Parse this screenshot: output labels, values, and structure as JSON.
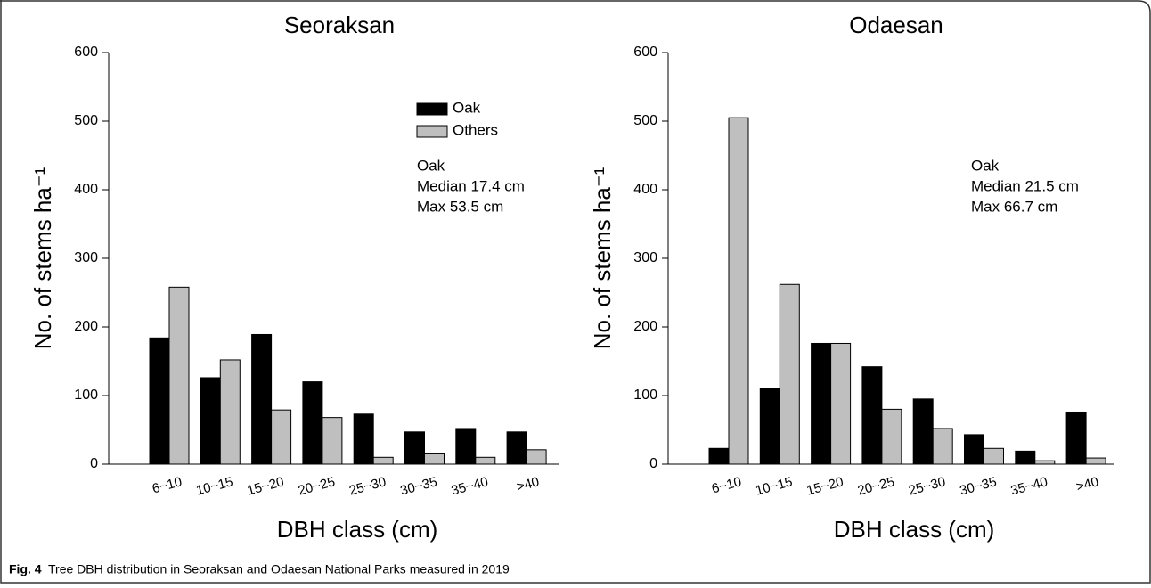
{
  "chart_data": [
    {
      "type": "bar",
      "title": "Seoraksan",
      "xlabel": "DBH class (cm)",
      "ylabel": "No. of stems ha⁻¹",
      "categories": [
        "6~10",
        "10~15",
        "15~20",
        "20~25",
        "25~30",
        "30~35",
        "35~40",
        ">40"
      ],
      "series": [
        {
          "name": "Oak",
          "color": "#000000",
          "values": [
            184,
            126,
            189,
            120,
            73,
            47,
            52,
            47
          ]
        },
        {
          "name": "Others",
          "color": "#bfbfbf",
          "values": [
            258,
            152,
            79,
            68,
            10,
            15,
            10,
            21
          ]
        }
      ],
      "ylim": [
        0,
        600
      ],
      "yticks": [
        0,
        100,
        200,
        300,
        400,
        500,
        600
      ],
      "legend_loc": "upper right",
      "annotation": [
        "Oak",
        "Median 17.4 cm",
        "Max 53.5 cm"
      ]
    },
    {
      "type": "bar",
      "title": "Odaesan",
      "xlabel": "DBH class (cm)",
      "ylabel": "No. of stems ha⁻¹",
      "categories": [
        "6~10",
        "10~15",
        "15~20",
        "20~25",
        "25~30",
        "30~35",
        "35~40",
        ">40"
      ],
      "series": [
        {
          "color": "#000000",
          "values": [
            23,
            110,
            176,
            142,
            95,
            43,
            19,
            76
          ]
        },
        {
          "color": "#bfbfbf",
          "values": [
            505,
            262,
            176,
            80,
            52,
            23,
            5,
            9
          ]
        }
      ],
      "ylim": [
        0,
        600
      ],
      "yticks": [
        0,
        100,
        200,
        300,
        400,
        500,
        600
      ],
      "annotation": [
        "Oak",
        "Median 21.5 cm",
        "Max 66.7 cm"
      ]
    }
  ],
  "caption": {
    "label": "Fig. 4",
    "text": "Tree DBH distribution in Seoraksan and Odaesan National Parks measured in 2019"
  }
}
